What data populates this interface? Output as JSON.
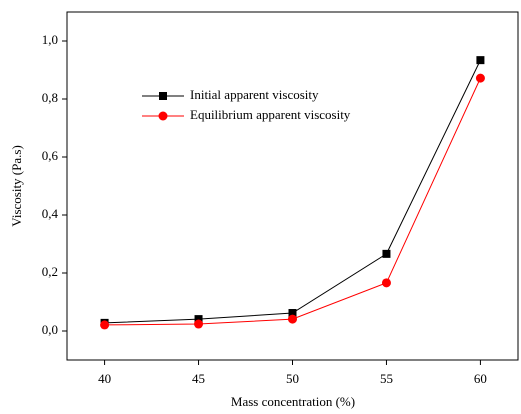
{
  "chart_data": {
    "type": "line",
    "x_label": "Mass concentration (%)",
    "y_label": "Viscosity (Pa.s)",
    "x": [
      40,
      45,
      50,
      55,
      60
    ],
    "series": [
      {
        "name": "Initial apparent viscosity",
        "color": "#000000",
        "marker": "square",
        "values": [
          0.028,
          0.041,
          0.062,
          0.266,
          0.934
        ]
      },
      {
        "name": "Equilibrium apparent viscosity",
        "color": "#ff0000",
        "marker": "circle",
        "values": [
          0.021,
          0.024,
          0.041,
          0.166,
          0.872
        ]
      }
    ],
    "xlim": [
      38,
      62
    ],
    "xticks": [
      40,
      45,
      50,
      55,
      60
    ],
    "ylim": [
      -0.1,
      1.1
    ],
    "yticks": [
      {
        "value": 0,
        "label": "0,0"
      },
      {
        "value": 0.2,
        "label": "0,2"
      },
      {
        "value": 0.4,
        "label": "0,4"
      },
      {
        "value": 0.6,
        "label": "0,6"
      },
      {
        "value": 0.8,
        "label": "0,8"
      },
      {
        "value": 1.0,
        "label": "1,0"
      }
    ],
    "legend": "upper left"
  }
}
